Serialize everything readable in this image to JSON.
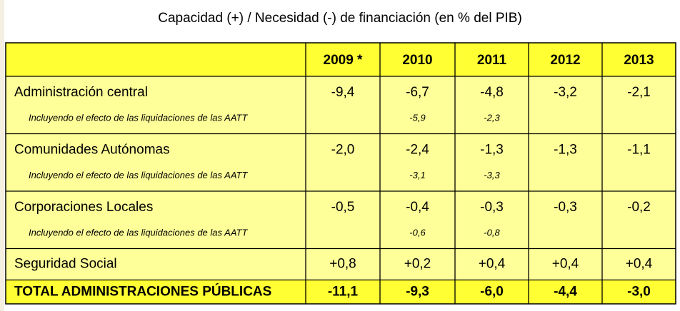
{
  "title": "Capacidad (+) / Necesidad (-) de financiación (en % del PIB)",
  "table": {
    "header": [
      "2009 *",
      "2010",
      "2011",
      "2012",
      "2013"
    ],
    "rows": [
      {
        "label": "Administración central",
        "values": [
          "-9,4",
          "-6,7",
          "-4,8",
          "-3,2",
          "-2,1"
        ],
        "note": "Incluyendo el efecto de las liquidaciones de las AATT",
        "note_values": [
          null,
          "-5,9",
          "-2,3",
          null,
          null
        ]
      },
      {
        "label": "Comunidades Autónomas",
        "values": [
          "-2,0",
          "-2,4",
          "-1,3",
          "-1,3",
          "-1,1"
        ],
        "note": "Incluyendo el efecto de las liquidaciones de las AATT",
        "note_values": [
          null,
          "-3,1",
          "-3,3",
          null,
          null
        ]
      },
      {
        "label": "Corporaciones Locales",
        "values": [
          "-0,5",
          "-0,4",
          "-0,3",
          "-0,3",
          "-0,2"
        ],
        "note": "Incluyendo el efecto de las liquidaciones de las AATT",
        "note_values": [
          null,
          "-0,6",
          "-0,8",
          null,
          null
        ]
      },
      {
        "label": "Seguridad Social",
        "values": [
          "+0,8",
          "+0,2",
          "+0,4",
          "+0,4",
          "+0,4"
        ]
      }
    ],
    "total": {
      "label": "TOTAL ADMINISTRACIONES PÚBLICAS",
      "values": [
        "-11,1",
        "-9,3",
        "-6,0",
        "-4,4",
        "-3,0"
      ]
    }
  }
}
